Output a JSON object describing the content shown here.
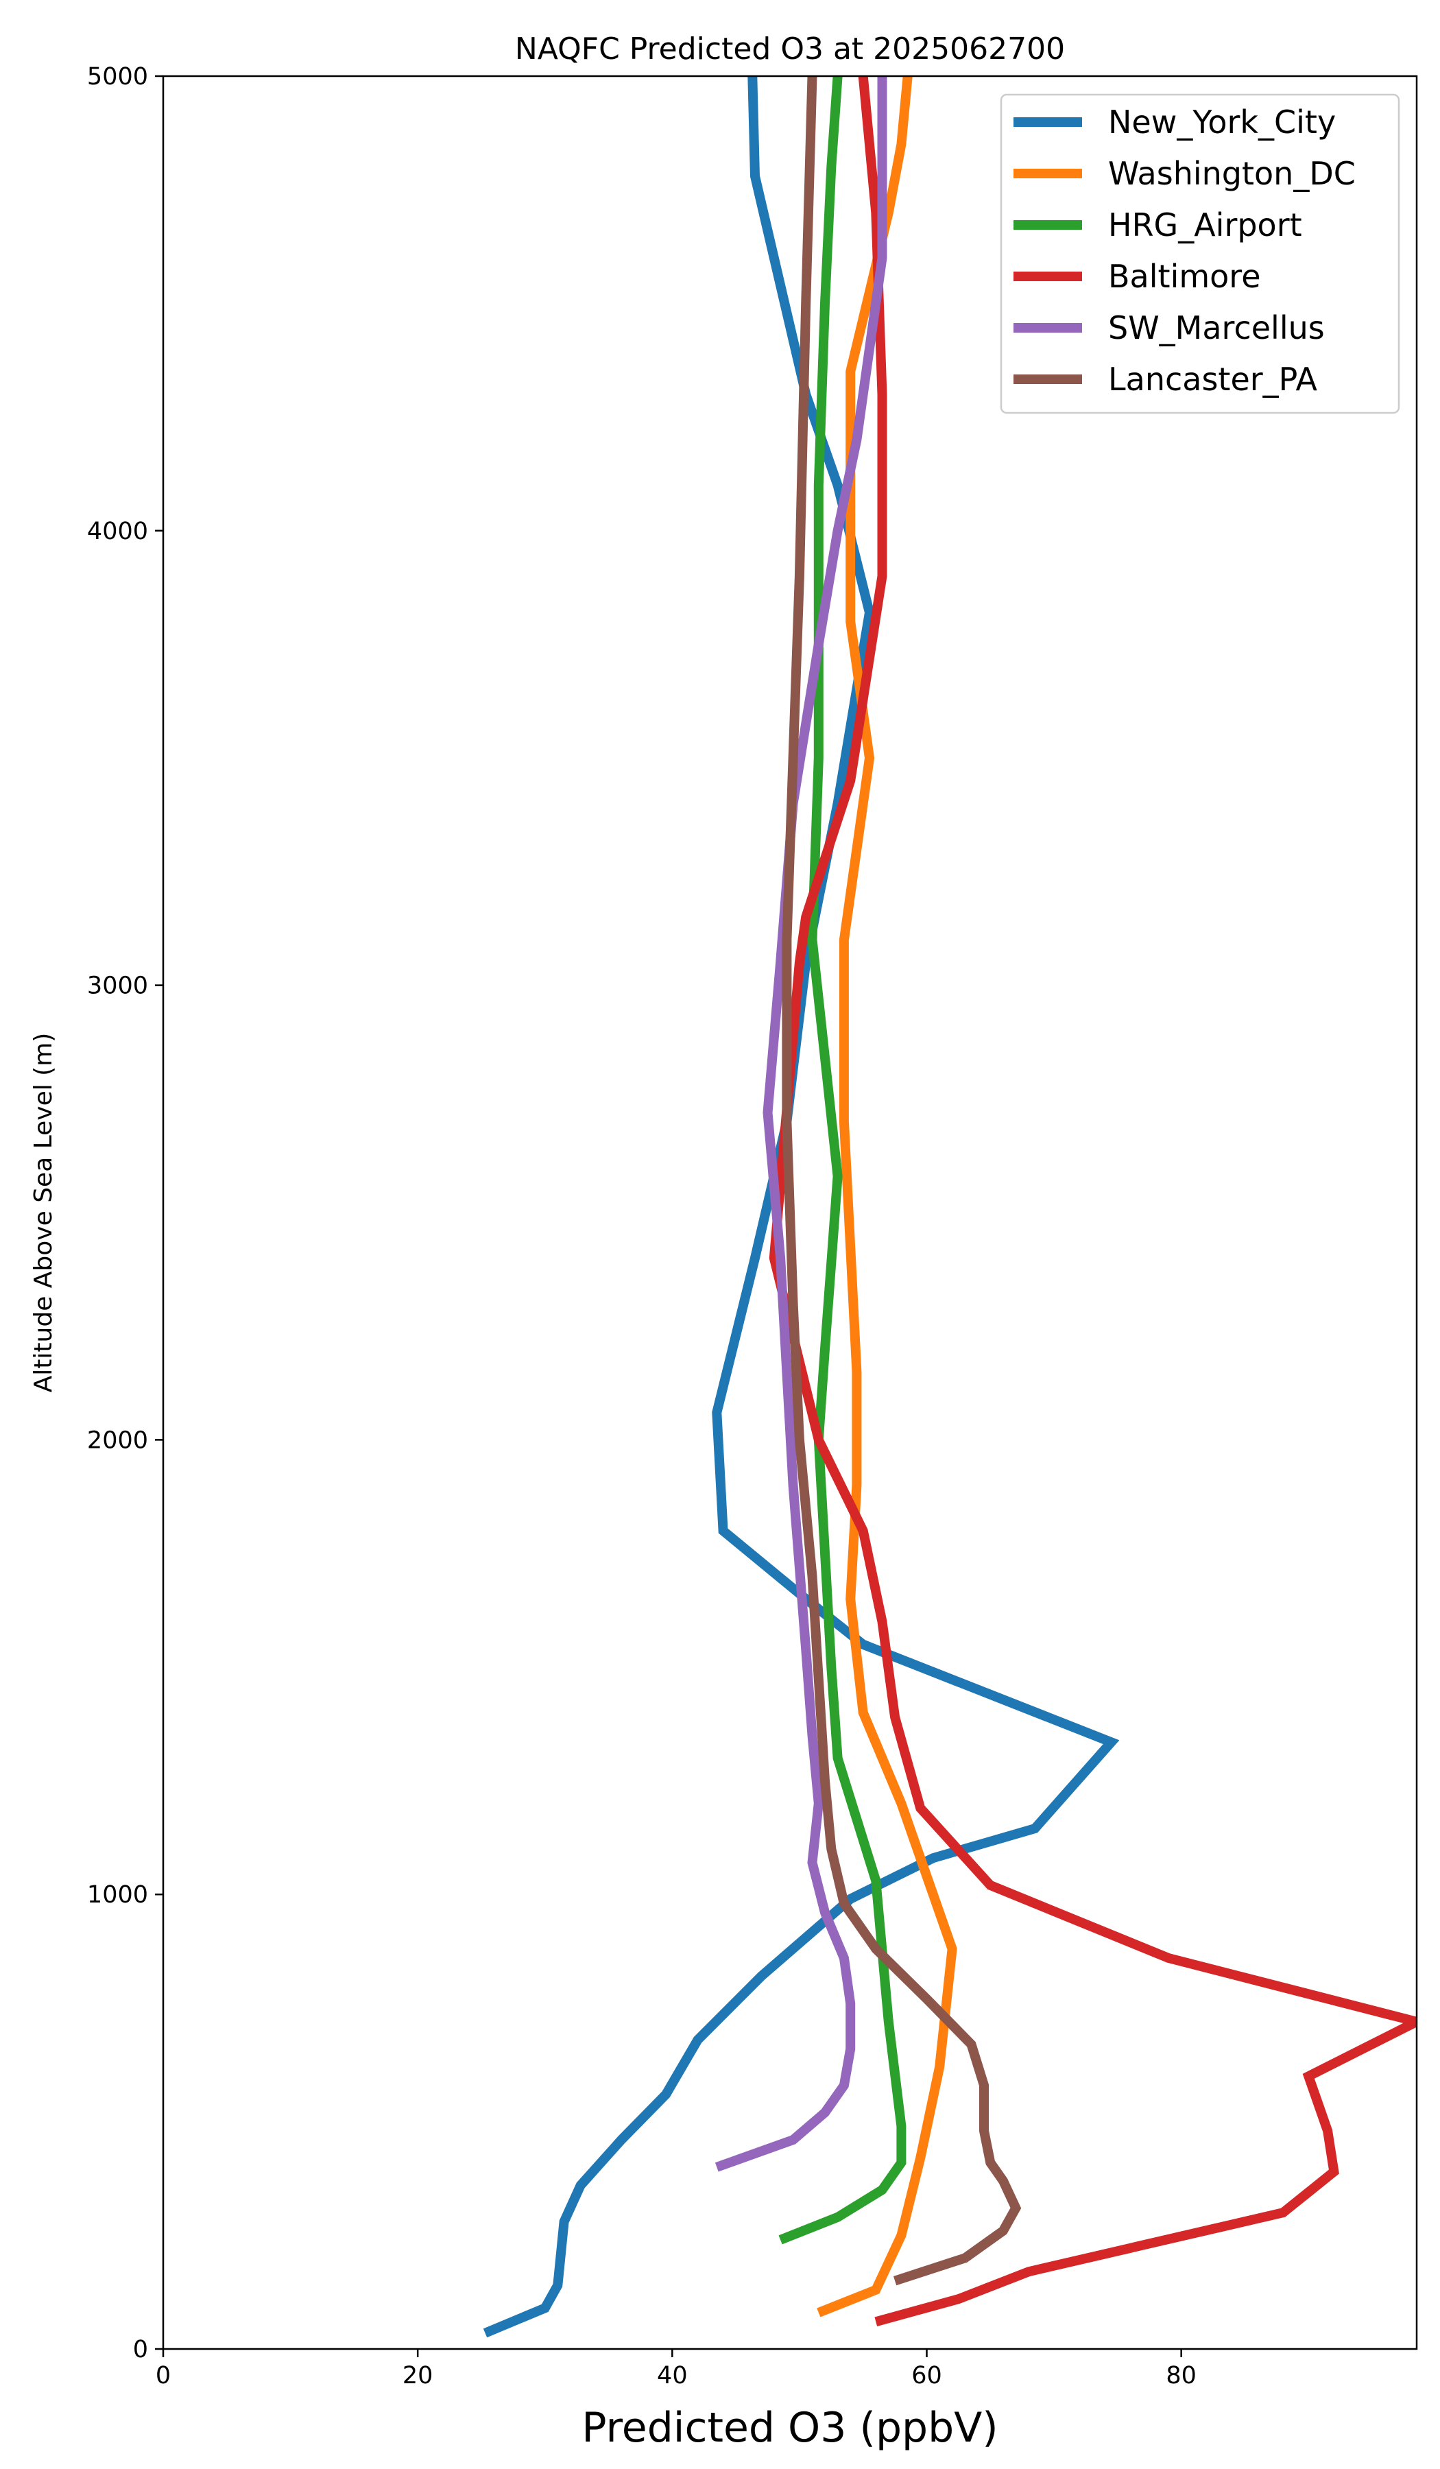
{
  "chart_data": {
    "type": "line",
    "title": "NAQFC Predicted O3 at 2025062700",
    "xlabel": "Predicted O3 (ppbV)",
    "ylabel": "Altitude Above Sea Level (m)",
    "xlim": [
      0,
      98.5
    ],
    "ylim": [
      0,
      5000
    ],
    "xticks": [
      0,
      20,
      40,
      60,
      80
    ],
    "yticks": [
      0,
      1000,
      2000,
      3000,
      4000,
      5000
    ],
    "legend_position": "top-right",
    "grid": false,
    "series": [
      {
        "name": "New_York_City",
        "color": "#1f77b4",
        "points": [
          [
            25.3,
            35
          ],
          [
            30.0,
            90
          ],
          [
            31.0,
            140
          ],
          [
            31.5,
            280
          ],
          [
            32.8,
            360
          ],
          [
            36.0,
            460
          ],
          [
            39.5,
            560
          ],
          [
            42.0,
            680
          ],
          [
            47.0,
            820
          ],
          [
            54.0,
            990
          ],
          [
            60.5,
            1080
          ],
          [
            68.5,
            1145
          ],
          [
            74.5,
            1335
          ],
          [
            55.0,
            1550
          ],
          [
            50.5,
            1650
          ],
          [
            44.0,
            1800
          ],
          [
            43.5,
            2060
          ],
          [
            46.5,
            2400
          ],
          [
            49.0,
            2700
          ],
          [
            50.5,
            3050
          ],
          [
            53.0,
            3400
          ],
          [
            55.5,
            3820
          ],
          [
            53.0,
            4100
          ],
          [
            50.5,
            4300
          ],
          [
            46.5,
            4780
          ],
          [
            46.3,
            5000
          ]
        ]
      },
      {
        "name": "Washington_DC",
        "color": "#ff7f0e",
        "points": [
          [
            51.5,
            80
          ],
          [
            56.0,
            130
          ],
          [
            58.0,
            250
          ],
          [
            59.5,
            420
          ],
          [
            61.0,
            620
          ],
          [
            62.0,
            880
          ],
          [
            58.0,
            1200
          ],
          [
            55.0,
            1400
          ],
          [
            54.0,
            1650
          ],
          [
            54.5,
            1900
          ],
          [
            54.5,
            2150
          ],
          [
            53.5,
            2700
          ],
          [
            53.5,
            3100
          ],
          [
            55.5,
            3500
          ],
          [
            54.0,
            3800
          ],
          [
            54.0,
            4350
          ],
          [
            57.0,
            4700
          ],
          [
            58.0,
            4850
          ],
          [
            58.5,
            5000
          ]
        ]
      },
      {
        "name": "HRG_Airport",
        "color": "#2ca02c",
        "points": [
          [
            48.5,
            240
          ],
          [
            53.0,
            290
          ],
          [
            56.5,
            350
          ],
          [
            58.0,
            410
          ],
          [
            58.0,
            490
          ],
          [
            57.0,
            720
          ],
          [
            56.0,
            1030
          ],
          [
            53.0,
            1300
          ],
          [
            52.5,
            1500
          ],
          [
            51.5,
            2000
          ],
          [
            52.0,
            2200
          ],
          [
            53.0,
            2580
          ],
          [
            51.0,
            3100
          ],
          [
            51.5,
            3500
          ],
          [
            51.5,
            4100
          ],
          [
            52.0,
            4500
          ],
          [
            52.5,
            4800
          ],
          [
            53.0,
            5000
          ]
        ]
      },
      {
        "name": "Baltimore",
        "color": "#d62728",
        "points": [
          [
            56.0,
            60
          ],
          [
            62.5,
            110
          ],
          [
            68.0,
            170
          ],
          [
            78.0,
            235
          ],
          [
            88.0,
            300
          ],
          [
            92.0,
            390
          ],
          [
            91.5,
            480
          ],
          [
            90.0,
            600
          ],
          [
            98.5,
            720
          ],
          [
            79.0,
            860
          ],
          [
            65.0,
            1020
          ],
          [
            59.5,
            1190
          ],
          [
            57.5,
            1390
          ],
          [
            56.5,
            1600
          ],
          [
            55.0,
            1800
          ],
          [
            51.5,
            2000
          ],
          [
            48.0,
            2400
          ],
          [
            50.0,
            3050
          ],
          [
            50.5,
            3150
          ],
          [
            54.0,
            3450
          ],
          [
            56.5,
            3900
          ],
          [
            56.5,
            4300
          ],
          [
            56.0,
            4700
          ],
          [
            55.0,
            5000
          ]
        ]
      },
      {
        "name": "SW_Marcellus",
        "color": "#9467bd",
        "points": [
          [
            43.5,
            400
          ],
          [
            49.5,
            460
          ],
          [
            52.0,
            520
          ],
          [
            53.5,
            580
          ],
          [
            54.0,
            660
          ],
          [
            54.0,
            760
          ],
          [
            53.5,
            860
          ],
          [
            52.0,
            960
          ],
          [
            51.0,
            1070
          ],
          [
            51.5,
            1200
          ],
          [
            51.0,
            1350
          ],
          [
            50.5,
            1540
          ],
          [
            49.5,
            1900
          ],
          [
            48.5,
            2400
          ],
          [
            47.5,
            2720
          ],
          [
            48.5,
            3050
          ],
          [
            49.5,
            3400
          ],
          [
            51.5,
            3750
          ],
          [
            53.0,
            4000
          ],
          [
            54.5,
            4200
          ],
          [
            56.5,
            4600
          ],
          [
            56.5,
            5000
          ]
        ]
      },
      {
        "name": "Lancaster_PA",
        "color": "#8c564b",
        "points": [
          [
            57.5,
            150
          ],
          [
            63.0,
            200
          ],
          [
            66.0,
            260
          ],
          [
            67.0,
            310
          ],
          [
            66.0,
            370
          ],
          [
            65.0,
            410
          ],
          [
            64.5,
            480
          ],
          [
            64.5,
            580
          ],
          [
            63.5,
            670
          ],
          [
            60.0,
            770
          ],
          [
            56.0,
            880
          ],
          [
            53.5,
            980
          ],
          [
            52.5,
            1100
          ],
          [
            52.0,
            1250
          ],
          [
            51.0,
            1700
          ],
          [
            50.0,
            2000
          ],
          [
            49.5,
            2300
          ],
          [
            49.0,
            2700
          ],
          [
            49.0,
            3100
          ],
          [
            49.5,
            3500
          ],
          [
            50.0,
            3900
          ],
          [
            50.5,
            4500
          ],
          [
            51.0,
            5000
          ]
        ]
      }
    ]
  }
}
